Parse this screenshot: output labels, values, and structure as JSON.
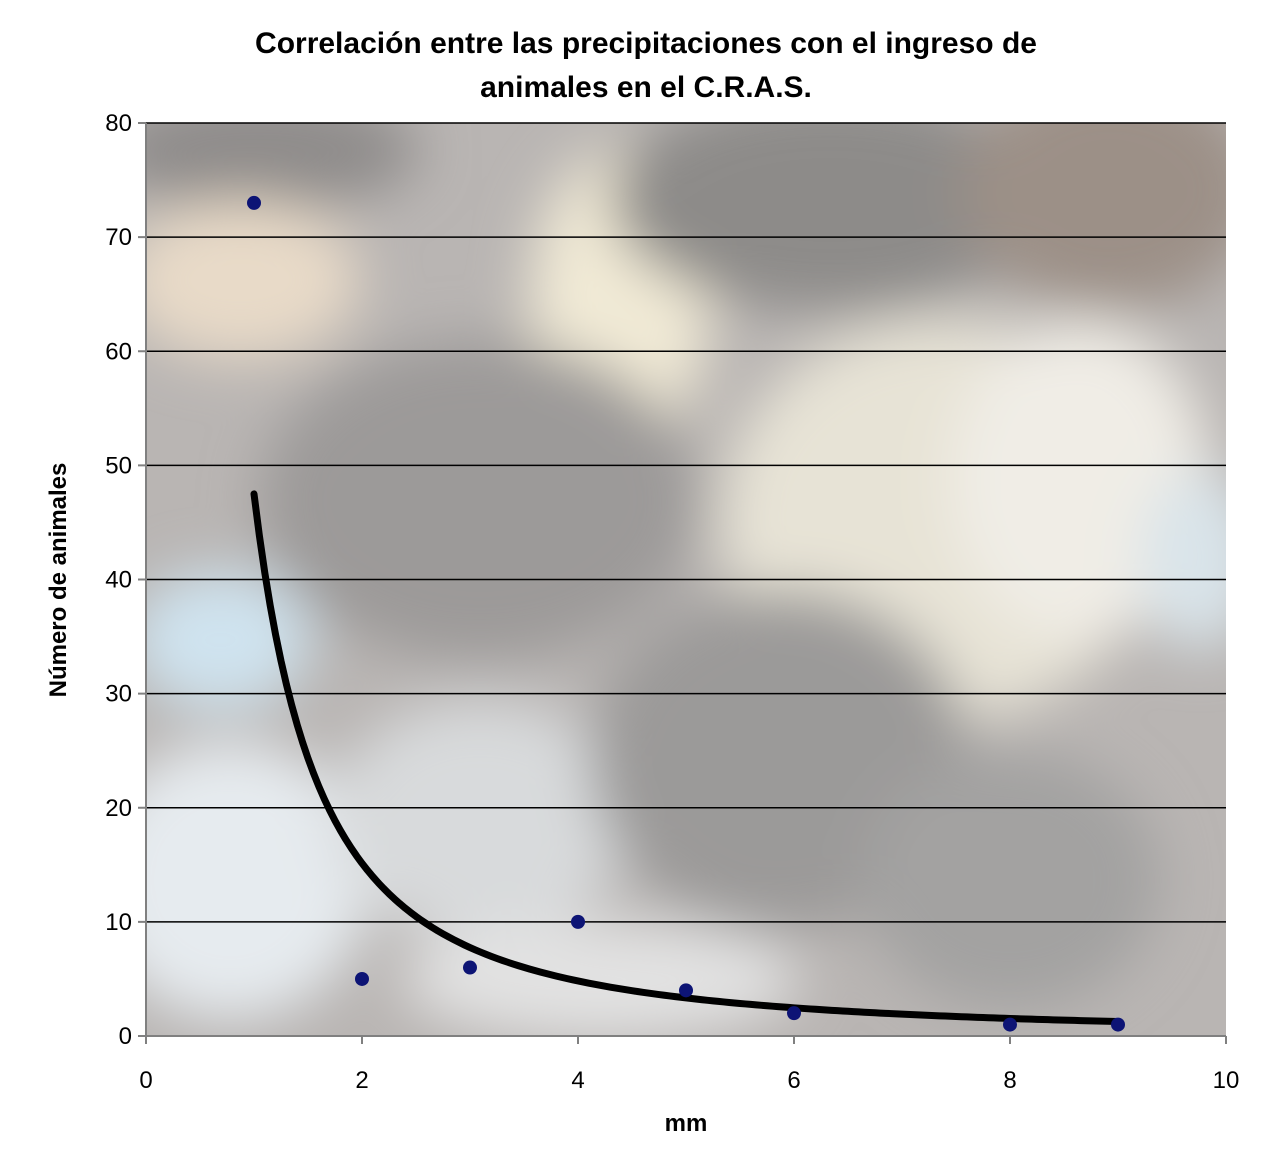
{
  "chart_data": {
    "type": "scatter",
    "title_lines": [
      "Correlación entre las precipitaciones con el ingreso de",
      "animales en el C.R.A.S."
    ],
    "xlabel": "mm",
    "ylabel": "Número de animales",
    "xlim": [
      0,
      10
    ],
    "ylim": [
      0,
      80
    ],
    "x_ticks": [
      0,
      2,
      4,
      6,
      8,
      10
    ],
    "y_ticks": [
      0,
      10,
      20,
      30,
      40,
      50,
      60,
      70,
      80
    ],
    "grid": "horizontal",
    "background": "cloudy sky photograph",
    "series": [
      {
        "x": [
          1,
          2,
          3,
          4,
          5,
          6,
          8,
          9
        ],
        "y": [
          73,
          5,
          6,
          10,
          4,
          2,
          1,
          1
        ],
        "color": "#0d1475",
        "marker": "circle"
      }
    ],
    "trendline": {
      "type": "power",
      "coefficient": 47.5,
      "exponent": -1.65,
      "x_range": [
        1,
        9
      ],
      "color": "#000000"
    }
  }
}
